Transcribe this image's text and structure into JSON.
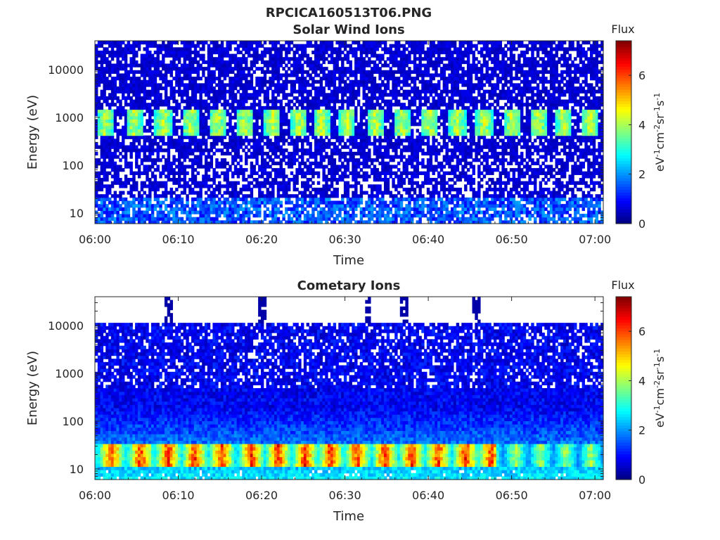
{
  "figure": {
    "filename": "RPCICA160513T06.PNG",
    "colorbar_label_base": "eV",
    "colorbar_label_exponents": [
      "-1",
      "-2",
      "-1",
      "-1"
    ],
    "colorbar_label_units": [
      "cm",
      "sr",
      "s"
    ]
  },
  "chart_data": [
    {
      "type": "heatmap",
      "title": "Solar Wind Ions",
      "xlabel": "Time",
      "ylabel": "Energy (eV)",
      "x_ticks": [
        "06:00",
        "06:10",
        "06:20",
        "06:30",
        "06:40",
        "06:50",
        "07:00"
      ],
      "x_range_minutes": [
        0,
        61
      ],
      "y_scale": "log",
      "y_ticks": [
        "10",
        "100",
        "1000",
        "10000"
      ],
      "y_range": [
        6,
        40000
      ],
      "colorbar": {
        "label": "Flux",
        "ticks": [
          "0",
          "2",
          "4",
          "6"
        ],
        "range": [
          0,
          7.4
        ],
        "colormap": "jet"
      },
      "features": {
        "peak_band_energy_eV": [
          400,
          1500
        ],
        "peak_band_flux": 3.8,
        "background_flux": 0.6,
        "pulse_centers_minutes": [
          1.2,
          4.7,
          8.2,
          11.5,
          14.8,
          18.0,
          21.3,
          24.5,
          27.2,
          30.3,
          33.7,
          36.9,
          40.2,
          43.5,
          46.7,
          50.0,
          53.2,
          56.3,
          59.4
        ],
        "low_energy_flux": 1.8
      }
    },
    {
      "type": "heatmap",
      "title": "Cometary Ions",
      "xlabel": "Time",
      "ylabel": "Energy (eV)",
      "x_ticks": [
        "06:00",
        "06:10",
        "06:20",
        "06:30",
        "06:40",
        "06:50",
        "07:00"
      ],
      "x_range_minutes": [
        0,
        61
      ],
      "y_scale": "log",
      "y_ticks": [
        "10",
        "100",
        "1000",
        "10000"
      ],
      "y_range": [
        6,
        40000
      ],
      "colorbar": {
        "label": "Flux",
        "ticks": [
          "0",
          "2",
          "4",
          "6"
        ],
        "range": [
          0,
          7.4
        ],
        "colormap": "jet"
      },
      "features": {
        "peak_band_energy_eV": [
          12,
          35
        ],
        "peak_band_flux": 5.5,
        "background_flux": 1.0,
        "high_energy_cutoff_eV": 11000,
        "spike_times_minutes": [
          8.9,
          20.0,
          32.8,
          37.1,
          45.8
        ],
        "pulse_centers_minutes": [
          2.0,
          5.5,
          8.8,
          12.0,
          15.2,
          18.8,
          22.0,
          25.2,
          28.3,
          31.5,
          34.8,
          38.0,
          41.2,
          44.5,
          47.5,
          50.5,
          53.5,
          56.5,
          59.5
        ]
      }
    }
  ]
}
